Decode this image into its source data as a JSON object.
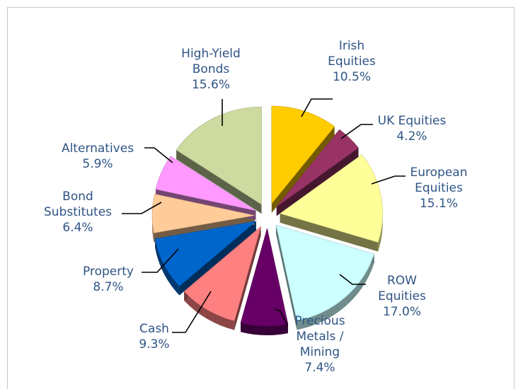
{
  "chart_data": {
    "type": "pie",
    "title": "",
    "slices": [
      {
        "label_lines": [
          "Irish",
          "Equities"
        ],
        "value": 10.5,
        "value_text": "10.5%",
        "color": "#ffcc00"
      },
      {
        "label_lines": [
          "UK Equities"
        ],
        "value": 4.2,
        "value_text": "4.2%",
        "color": "#993366"
      },
      {
        "label_lines": [
          "European",
          "Equities"
        ],
        "value": 15.1,
        "value_text": "15.1%",
        "color": "#ffff99"
      },
      {
        "label_lines": [
          "ROW",
          "Equities"
        ],
        "value": 17.0,
        "value_text": "17.0%",
        "color": "#ccffff"
      },
      {
        "label_lines": [
          "Precious",
          "Metals /",
          "Mining"
        ],
        "value": 7.4,
        "value_text": "7.4%",
        "color": "#660066"
      },
      {
        "label_lines": [
          "Cash"
        ],
        "value": 9.3,
        "value_text": "9.3%",
        "color": "#ff8080"
      },
      {
        "label_lines": [
          "Property"
        ],
        "value": 8.7,
        "value_text": "8.7%",
        "color": "#0066cc"
      },
      {
        "label_lines": [
          "Bond",
          "Substitutes"
        ],
        "value": 6.4,
        "value_text": "6.4%",
        "color": "#ffcc99"
      },
      {
        "label_lines": [
          "Alternatives"
        ],
        "value": 5.9,
        "value_text": "5.9%",
        "color": "#ff99ff"
      },
      {
        "label_lines": [
          "High-Yield",
          "Bonds"
        ],
        "value": 15.6,
        "value_text": "15.6%",
        "color": "#cedba0"
      }
    ],
    "legend": "none",
    "data_labels": "outside with leader lines"
  }
}
